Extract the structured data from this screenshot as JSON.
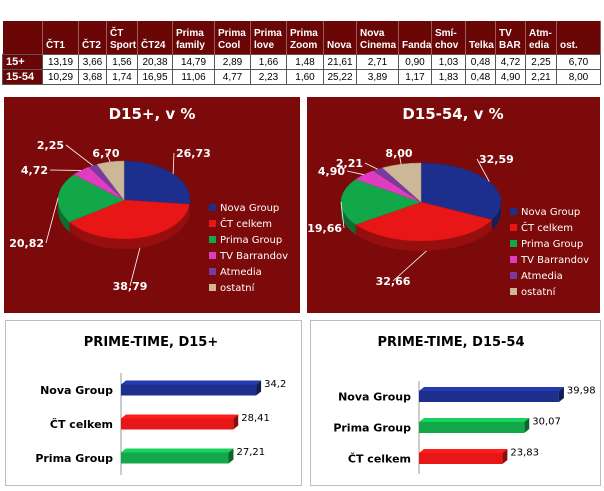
{
  "table": {
    "headers": [
      "",
      "ČT1",
      "ČT2",
      "ČT Sport",
      "ČT24",
      "Prima family",
      "Prima Cool",
      "Prima love",
      "Prima Zoom",
      "Nova",
      "Nova Cinema",
      "Fanda",
      "Smí-chov",
      "Telka",
      "TV BAR",
      "Atm-edia",
      "ost."
    ],
    "rows": [
      {
        "label": "15+",
        "values": [
          "13,19",
          "3,66",
          "1,56",
          "20,38",
          "14,79",
          "2,89",
          "1,66",
          "1,48",
          "21,61",
          "2,71",
          "0,90",
          "1,03",
          "0,48",
          "4,72",
          "2,25",
          "6,70"
        ]
      },
      {
        "label": "15-54",
        "values": [
          "10,29",
          "3,68",
          "1,74",
          "16,95",
          "11,06",
          "4,77",
          "2,23",
          "1,60",
          "25,22",
          "3,89",
          "1,17",
          "1,83",
          "0,48",
          "4,90",
          "2,21",
          "8,00"
        ]
      }
    ]
  },
  "legend": [
    "Nova Group",
    "ČT celkem",
    "Prima Group",
    "TV Barrandov",
    "Atmedia",
    "ostatní"
  ],
  "colors": {
    "Nova Group": "#1d2f8c",
    "ČT celkem": "#e81616",
    "Prima Group": "#12a84a",
    "TV Barrandov": "#e03cc0",
    "Atmedia": "#7b3aa0",
    "ostatní": "#ccb896",
    "panel": "#7d0a0a"
  },
  "chart_data": [
    {
      "type": "pie",
      "title": "D15+, v %",
      "labels": [
        "Nova Group",
        "ČT celkem",
        "Prima Group",
        "TV Barrandov",
        "Atmedia",
        "ostatní"
      ],
      "values": [
        26.73,
        38.79,
        20.82,
        4.72,
        2.25,
        6.7
      ],
      "value_labels": [
        "26,73",
        "38,79",
        "20,82",
        "4,72",
        "2,25",
        "6,70"
      ],
      "legend_position": "right"
    },
    {
      "type": "pie",
      "title": "D15-54, v %",
      "labels": [
        "Nova Group",
        "ČT celkem",
        "Prima Group",
        "TV Barrandov",
        "Atmedia",
        "ostatní"
      ],
      "values": [
        32.59,
        32.66,
        19.66,
        4.9,
        2.21,
        8.0
      ],
      "value_labels": [
        "32,59",
        "32,66",
        "19,66",
        "4,90",
        "2,21",
        "8,00"
      ],
      "legend_position": "right"
    },
    {
      "type": "bar",
      "orientation": "horizontal",
      "title": "PRIME-TIME, D15+",
      "categories": [
        "Nova Group",
        "ČT celkem",
        "Prima Group"
      ],
      "values": [
        34.2,
        28.41,
        27.21
      ],
      "value_labels": [
        "34,2",
        "28,41",
        "27,21"
      ],
      "colors": [
        "#1d2f8c",
        "#e81616",
        "#12a84a"
      ],
      "xlim": [
        0,
        40
      ]
    },
    {
      "type": "bar",
      "orientation": "horizontal",
      "title": "PRIME-TIME, D15-54",
      "categories": [
        "Nova Group",
        "Prima Group",
        "ČT celkem"
      ],
      "values": [
        39.98,
        30.07,
        23.83
      ],
      "value_labels": [
        "39,98",
        "30,07",
        "23,83"
      ],
      "colors": [
        "#1d2f8c",
        "#12a84a",
        "#e81616"
      ],
      "xlim": [
        0,
        40
      ]
    }
  ]
}
